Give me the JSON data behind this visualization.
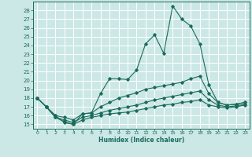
{
  "title": "",
  "xlabel": "Humidex (Indice chaleur)",
  "ylabel": "",
  "background_color": "#cce8e6",
  "grid_color": "#ffffff",
  "line_color": "#1a6b5a",
  "xlim": [
    -0.5,
    23.5
  ],
  "ylim": [
    14.5,
    29.0
  ],
  "yticks": [
    15,
    16,
    17,
    18,
    19,
    20,
    21,
    22,
    23,
    24,
    25,
    26,
    27,
    28
  ],
  "xticks": [
    0,
    1,
    2,
    3,
    4,
    5,
    6,
    7,
    8,
    9,
    10,
    11,
    12,
    13,
    14,
    15,
    16,
    17,
    18,
    19,
    20,
    21,
    22,
    23
  ],
  "series": [
    [
      18.0,
      17.0,
      16.0,
      15.2,
      15.0,
      16.2,
      16.3,
      18.5,
      20.2,
      20.2,
      20.1,
      21.2,
      24.2,
      25.2,
      23.1,
      28.5,
      27.0,
      26.2,
      24.2,
      19.5,
      17.5,
      17.2,
      17.3,
      17.5
    ],
    [
      18.0,
      17.0,
      16.0,
      15.8,
      15.5,
      16.2,
      16.3,
      17.0,
      17.5,
      18.0,
      18.3,
      18.6,
      19.0,
      19.2,
      19.4,
      19.6,
      19.8,
      20.2,
      20.5,
      18.5,
      17.5,
      17.2,
      17.3,
      17.5
    ],
    [
      18.0,
      17.0,
      15.8,
      15.5,
      15.2,
      15.8,
      16.0,
      16.3,
      16.6,
      16.8,
      17.0,
      17.2,
      17.5,
      17.8,
      18.0,
      18.2,
      18.4,
      18.6,
      18.8,
      17.8,
      17.2,
      17.0,
      17.1,
      17.3
    ],
    [
      18.0,
      17.0,
      15.8,
      15.3,
      15.0,
      15.5,
      15.8,
      16.0,
      16.2,
      16.3,
      16.4,
      16.6,
      16.8,
      17.0,
      17.2,
      17.3,
      17.5,
      17.6,
      17.8,
      17.2,
      17.0,
      16.9,
      17.0,
      17.2
    ]
  ]
}
